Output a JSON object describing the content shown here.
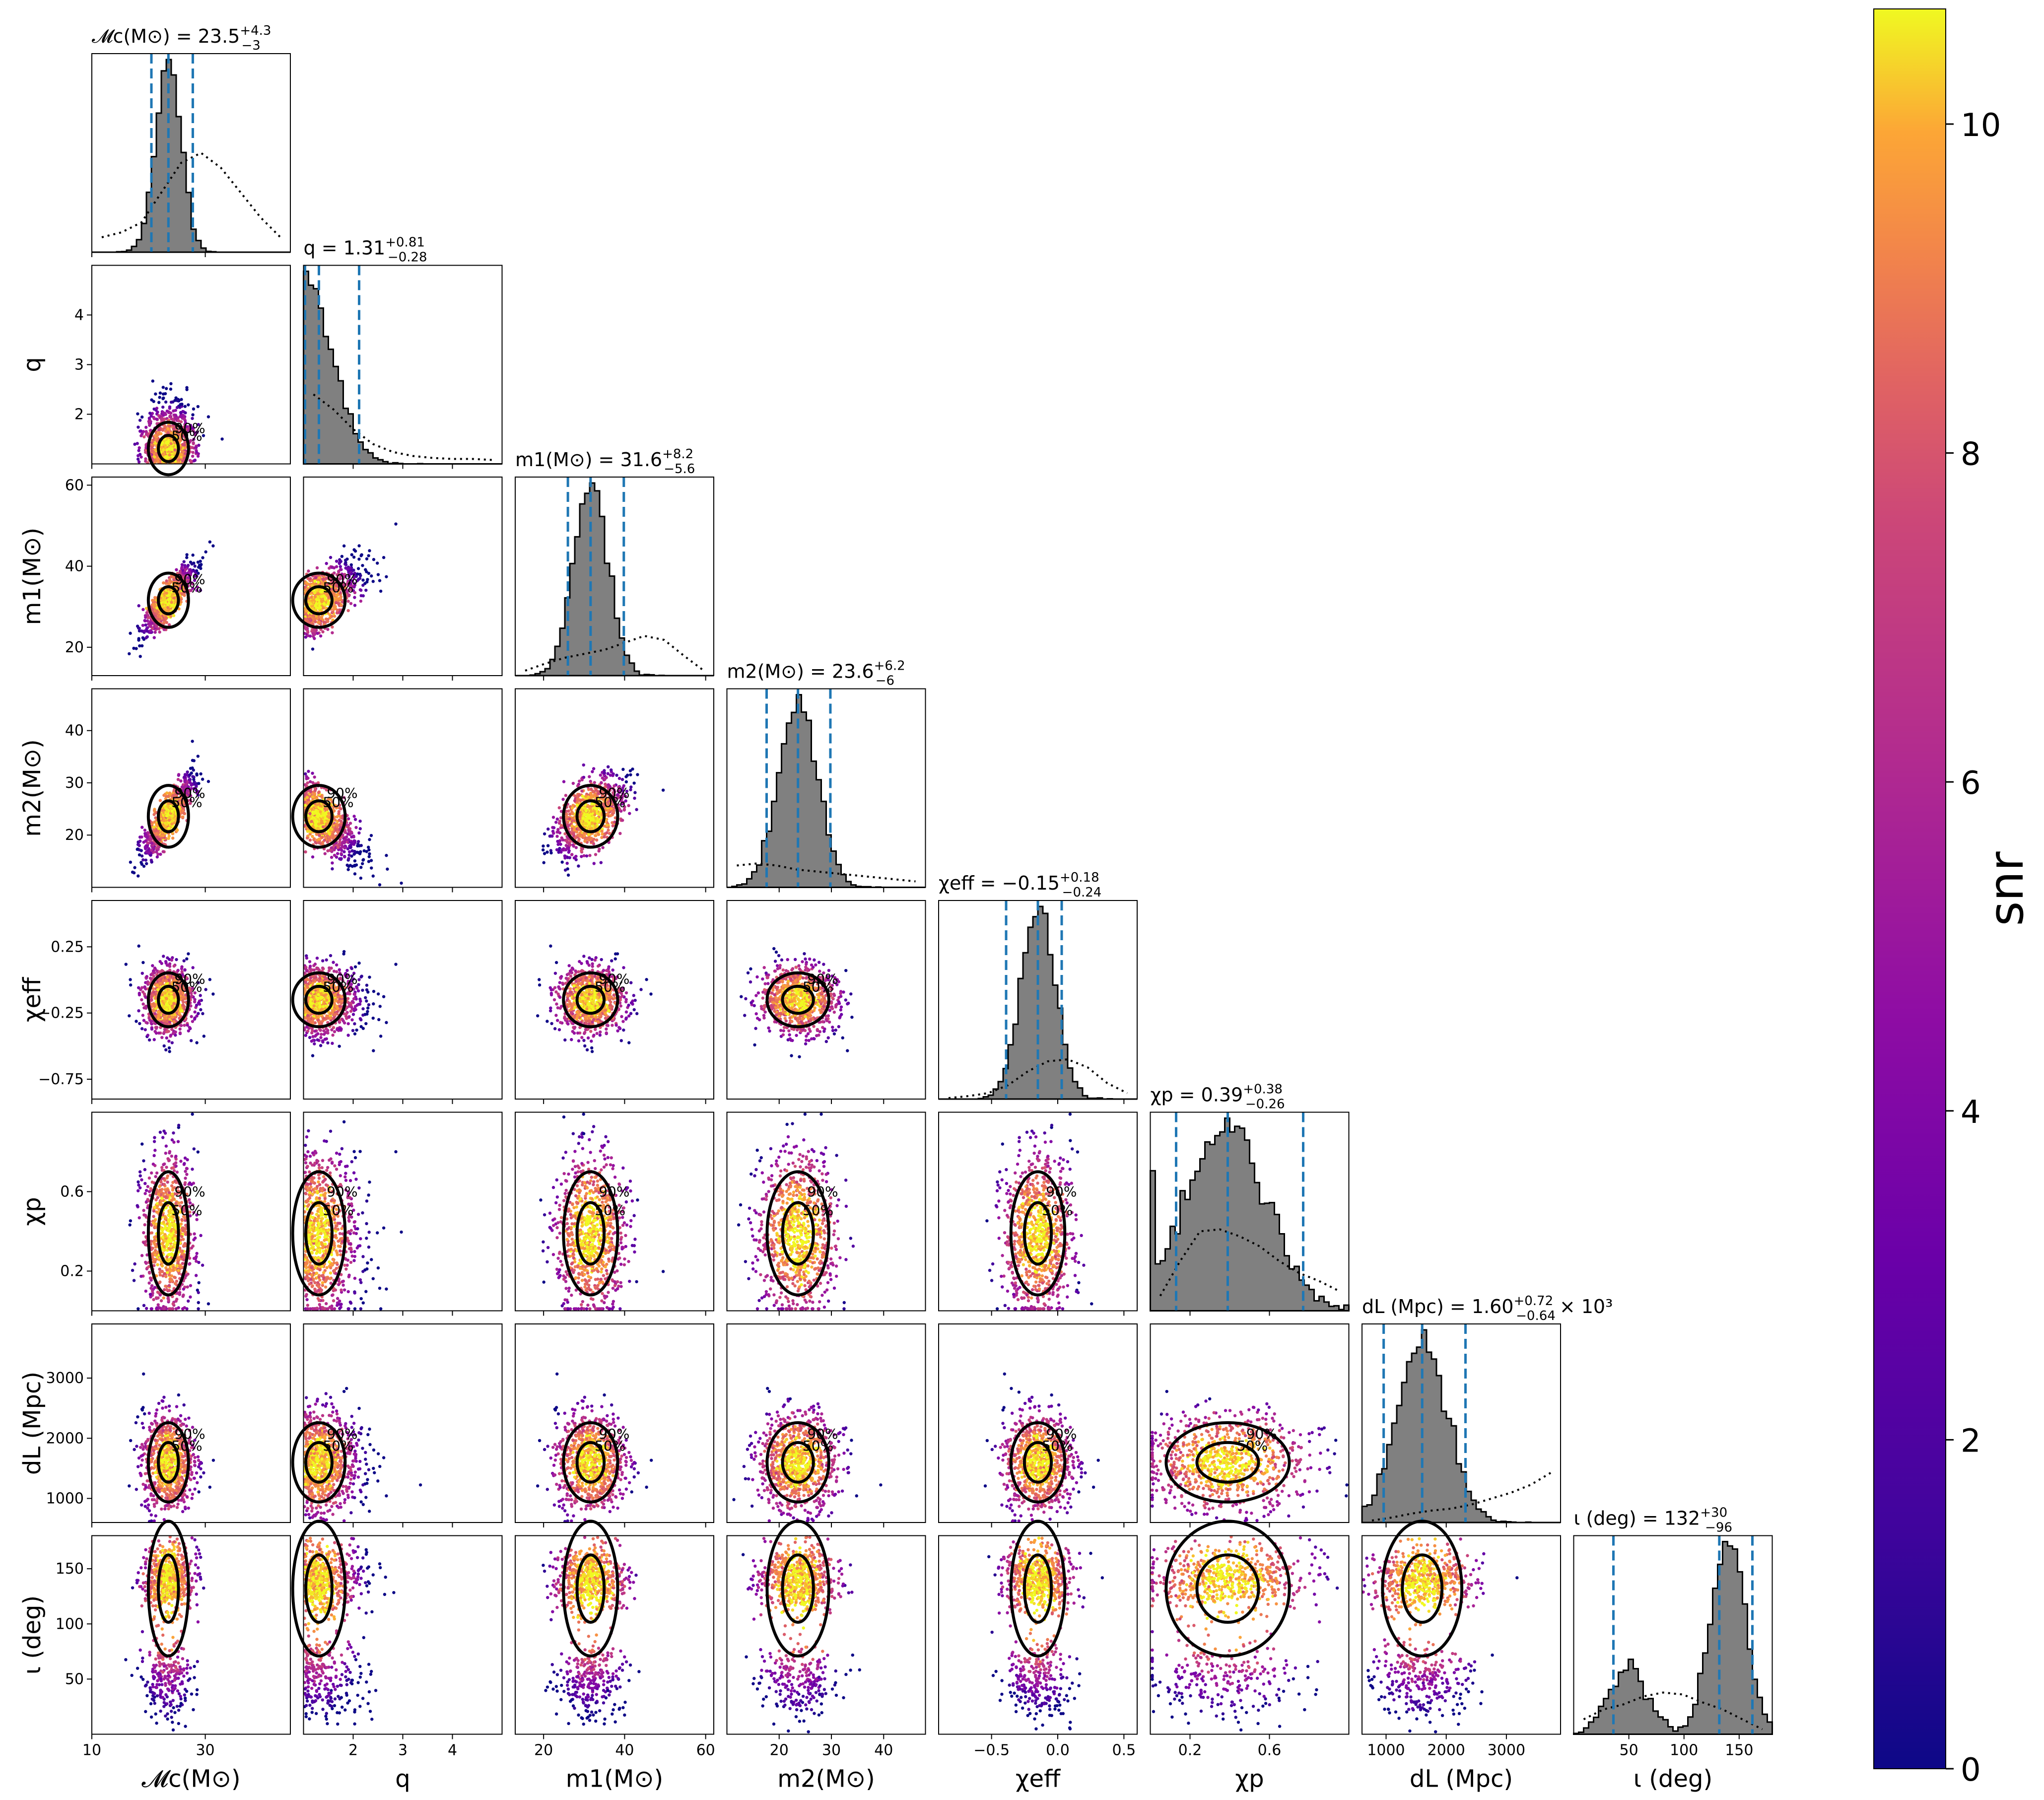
{
  "chart_data": {
    "type": "corner",
    "params": [
      {
        "key": "mc",
        "label": "𝓜c(M⊙)",
        "title": "𝓜c(M⊙) = 23.5",
        "plus": "+4.3",
        "minus": "−3",
        "range": [
          10,
          45
        ],
        "ticks": [
          10,
          30
        ],
        "median": 23.5,
        "lo": 20.5,
        "hi": 27.8,
        "prior": [
          0.15,
          0.2,
          0.3,
          0.6,
          0.9,
          1.0,
          0.85,
          0.6,
          0.35,
          0.15
        ]
      },
      {
        "key": "q",
        "label": "q",
        "title": "q = 1.31",
        "plus": "+0.81",
        "minus": "−0.28",
        "range": [
          1,
          5
        ],
        "ticks": [
          2,
          3,
          4
        ],
        "median": 1.31,
        "lo": 1.03,
        "hi": 2.12,
        "prior": [
          0.7,
          0.55,
          0.35,
          0.2,
          0.12,
          0.08,
          0.06,
          0.05,
          0.05,
          0.04
        ]
      },
      {
        "key": "m1",
        "label": "m1(M⊙)",
        "title": "m1(M⊙) = 31.6",
        "plus": "+8.2",
        "minus": "−5.6",
        "range": [
          13,
          62
        ],
        "ticks": [
          20,
          40,
          60
        ],
        "median": 31.6,
        "lo": 26.0,
        "hi": 39.8,
        "prior": [
          0.05,
          0.12,
          0.18,
          0.22,
          0.26,
          0.33,
          0.4,
          0.36,
          0.2,
          0.05
        ]
      },
      {
        "key": "m2",
        "label": "m2(M⊙)",
        "title": "m2(M⊙) = 23.6",
        "plus": "+6.2",
        "minus": "−6",
        "range": [
          10,
          48
        ],
        "ticks": [
          20,
          30,
          40
        ],
        "median": 23.6,
        "lo": 17.6,
        "hi": 29.8,
        "prior": [
          0.22,
          0.24,
          0.22,
          0.18,
          0.16,
          0.14,
          0.12,
          0.1,
          0.08,
          0.06
        ]
      },
      {
        "key": "chieff",
        "label": "χeff",
        "title": "χeff = −0.15",
        "plus": "+0.18",
        "minus": "−0.24",
        "range": [
          -0.9,
          0.6
        ],
        "ticks": [
          -0.5,
          0.0,
          0.5
        ],
        "median": -0.15,
        "lo": -0.39,
        "hi": 0.03,
        "prior": [
          0.01,
          0.03,
          0.06,
          0.14,
          0.28,
          0.38,
          0.4,
          0.32,
          0.16,
          0.06
        ]
      },
      {
        "key": "chip",
        "label": "χp",
        "title": "χp = 0.39",
        "plus": "+0.38",
        "minus": "−0.26",
        "range": [
          0.0,
          1.0
        ],
        "ticks": [
          0.2,
          0.6
        ],
        "median": 0.39,
        "lo": 0.13,
        "hi": 0.77,
        "prior": [
          0.15,
          0.5,
          0.8,
          0.82,
          0.75,
          0.65,
          0.5,
          0.38,
          0.3,
          0.2
        ]
      },
      {
        "key": "dl",
        "label": "dL (Mpc)",
        "title": "dL (Mpc) = 1.60",
        "plus": "+0.72",
        "minus": "−0.64",
        "suffix": "× 10³",
        "range": [
          600,
          3900
        ],
        "ticks": [
          1000,
          2000,
          3000
        ],
        "median": 1600,
        "lo": 960,
        "hi": 2320,
        "prior": [
          0.02,
          0.05,
          0.09,
          0.12,
          0.14,
          0.18,
          0.24,
          0.3,
          0.38,
          0.5
        ]
      },
      {
        "key": "iota",
        "label": "ι (deg)",
        "title": "ι (deg) = 132",
        "plus": "+30",
        "minus": "−96",
        "range": [
          0,
          180
        ],
        "ticks": [
          50,
          100,
          150
        ],
        "median": 132,
        "lo": 36,
        "hi": 162,
        "prior": [
          0.15,
          0.25,
          0.3,
          0.38,
          0.42,
          0.4,
          0.32,
          0.25,
          0.15,
          0.05
        ]
      }
    ],
    "y_ticks": {
      "q": [
        2,
        3,
        4
      ],
      "m1": [
        20,
        40,
        60
      ],
      "m2": [
        20,
        30,
        40
      ],
      "chieff": [
        -0.75,
        -0.25,
        0.25
      ],
      "chip": [
        0.2,
        0.6
      ],
      "dl": [
        1000,
        2000,
        3000
      ],
      "iota": [
        50,
        100,
        150
      ]
    },
    "contour_labels": [
      "50%",
      "90%"
    ],
    "colorbar": {
      "label": "snr",
      "min": 0,
      "max": 10.7,
      "ticks": [
        0,
        2,
        4,
        6,
        8,
        10
      ],
      "colormap": "plasma"
    },
    "colors": {
      "hist_fill": "#808080",
      "quantile_line": "#1f77b4",
      "contour": "#000000"
    }
  }
}
